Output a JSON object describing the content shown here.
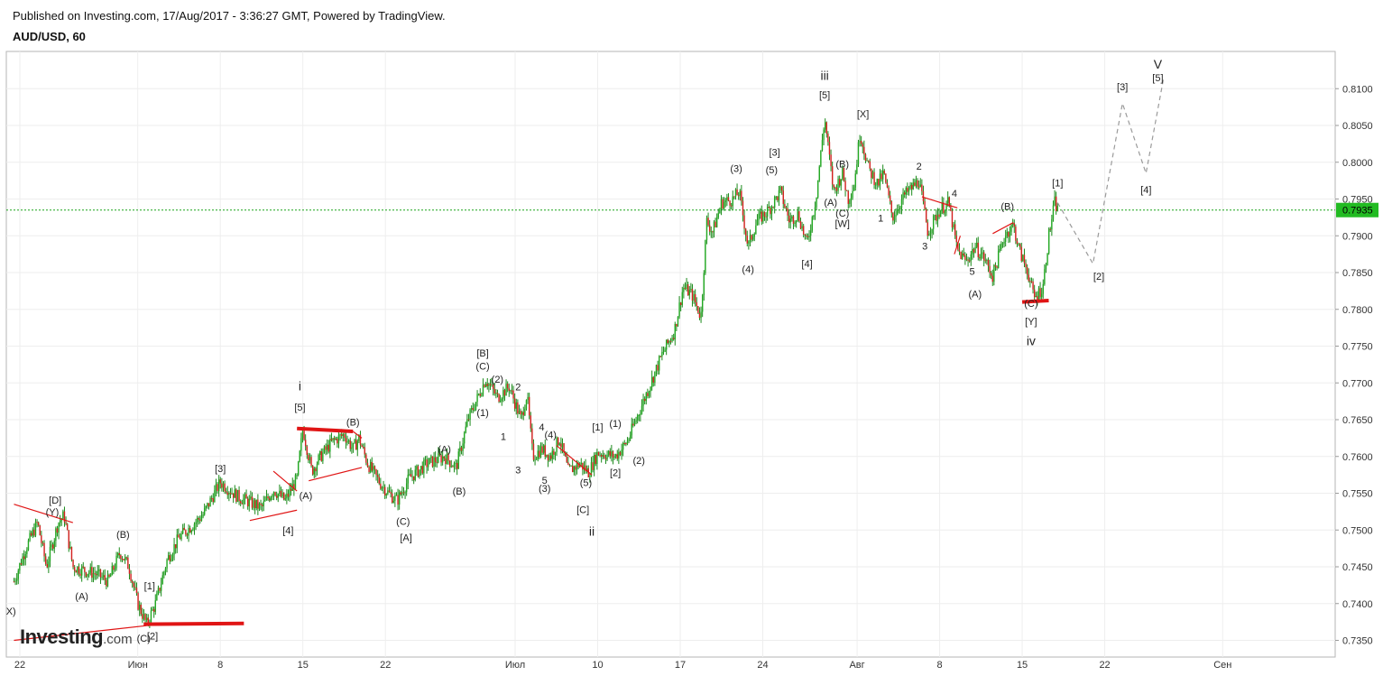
{
  "header": {
    "published": "Published on Investing.com, 17/Aug/2017 - 3:36:27 GMT, Powered by TradingView.",
    "symbol": "AUD/USD, 60"
  },
  "logo": {
    "brand": "Investing",
    "suffix": ".com"
  },
  "chart_data": {
    "type": "candlestick",
    "symbol": "AUD/USD",
    "interval": "60",
    "grid": true,
    "current_price": {
      "value": 0.7935,
      "label": "0.7935"
    },
    "colors": {
      "up": "#22a822",
      "down": "#d62020",
      "line": "#1a8a1a",
      "price_line": "#1aa31a",
      "price_tag_bg": "#22bb22",
      "grid": "#eeeeee",
      "trend": "#e01515",
      "projection": "#9a9a9a"
    },
    "y_axis": {
      "range": [
        0.7335,
        0.8145
      ],
      "ticks": [
        "0.7350",
        "0.7400",
        "0.7450",
        "0.7500",
        "0.7550",
        "0.7600",
        "0.7650",
        "0.7700",
        "0.7750",
        "0.7800",
        "0.7850",
        "0.7900",
        "0.7950",
        "0.8000",
        "0.8050",
        "0.8100"
      ]
    },
    "x_axis": {
      "date_range": [
        "2017-05-22",
        "2017-09-05"
      ],
      "ticks": [
        {
          "label": "22",
          "date": "2017-05-22"
        },
        {
          "label": "Июн",
          "date": "2017-06-01"
        },
        {
          "label": "8",
          "date": "2017-06-08"
        },
        {
          "label": "15",
          "date": "2017-06-15"
        },
        {
          "label": "22",
          "date": "2017-06-22"
        },
        {
          "label": "Июл",
          "date": "2017-07-03"
        },
        {
          "label": "10",
          "date": "2017-07-10"
        },
        {
          "label": "17",
          "date": "2017-07-17"
        },
        {
          "label": "24",
          "date": "2017-07-24"
        },
        {
          "label": "Авг",
          "date": "2017-08-01"
        },
        {
          "label": "8",
          "date": "2017-08-08"
        },
        {
          "label": "15",
          "date": "2017-08-15"
        },
        {
          "label": "22",
          "date": "2017-08-22"
        },
        {
          "label": "Сен",
          "date": "2017-09-01"
        }
      ]
    },
    "price_path": [
      [
        "2017-05-21 12:00",
        0.743
      ],
      [
        "2017-05-22 12:00",
        0.7475
      ],
      [
        "2017-05-23 12:00",
        0.751
      ],
      [
        "2017-05-24 06:00",
        0.745
      ],
      [
        "2017-05-25 06:00",
        0.751
      ],
      [
        "2017-05-25 18:00",
        0.752
      ],
      [
        "2017-05-26 12:00",
        0.745
      ],
      [
        "2017-05-28 12:00",
        0.744
      ],
      [
        "2017-05-29 12:00",
        0.743
      ],
      [
        "2017-05-30 12:00",
        0.747
      ],
      [
        "2017-05-31 06:00",
        0.745
      ],
      [
        "2017-06-01 00:00",
        0.74
      ],
      [
        "2017-06-01 18:00",
        0.7372
      ],
      [
        "2017-06-02 12:00",
        0.74
      ],
      [
        "2017-06-03 12:00",
        0.746
      ],
      [
        "2017-06-04 12:00",
        0.749
      ],
      [
        "2017-06-06 12:00",
        0.752
      ],
      [
        "2017-06-08 00:00",
        0.7565
      ],
      [
        "2017-06-09 12:00",
        0.7545
      ],
      [
        "2017-06-11 12:00",
        0.753
      ],
      [
        "2017-06-12 12:00",
        0.7555
      ],
      [
        "2017-06-13 12:00",
        0.754
      ],
      [
        "2017-06-14 12:00",
        0.757
      ],
      [
        "2017-06-15 00:00",
        0.7638
      ],
      [
        "2017-06-15 18:00",
        0.758
      ],
      [
        "2017-06-16 12:00",
        0.76
      ],
      [
        "2017-06-17 12:00",
        0.762
      ],
      [
        "2017-06-18 12:00",
        0.763
      ],
      [
        "2017-06-19 06:00",
        0.761
      ],
      [
        "2017-06-19 18:00",
        0.7625
      ],
      [
        "2017-06-20 12:00",
        0.759
      ],
      [
        "2017-06-21 12:00",
        0.7565
      ],
      [
        "2017-06-22 06:00",
        0.755
      ],
      [
        "2017-06-23 00:00",
        0.754
      ],
      [
        "2017-06-24 00:00",
        0.757
      ],
      [
        "2017-06-25 12:00",
        0.759
      ],
      [
        "2017-06-27 00:00",
        0.76
      ],
      [
        "2017-06-28 00:00",
        0.7585
      ],
      [
        "2017-06-29 00:00",
        0.765
      ],
      [
        "2017-06-30 12:00",
        0.7705
      ],
      [
        "2017-07-01 12:00",
        0.768
      ],
      [
        "2017-07-02 12:00",
        0.7695
      ],
      [
        "2017-07-03 12:00",
        0.765
      ],
      [
        "2017-07-04 00:00",
        0.7685
      ],
      [
        "2017-07-04 12:00",
        0.76
      ],
      [
        "2017-07-05 06:00",
        0.761
      ],
      [
        "2017-07-06 00:00",
        0.76
      ],
      [
        "2017-07-06 18:00",
        0.7625
      ],
      [
        "2017-07-07 12:00",
        0.758
      ],
      [
        "2017-07-08 12:00",
        0.759
      ],
      [
        "2017-07-09 06:00",
        0.7578
      ],
      [
        "2017-07-10 00:00",
        0.7605
      ],
      [
        "2017-07-11 12:00",
        0.76
      ],
      [
        "2017-07-12 12:00",
        0.762
      ],
      [
        "2017-07-13 12:00",
        0.766
      ],
      [
        "2017-07-14 12:00",
        0.77
      ],
      [
        "2017-07-15 12:00",
        0.774
      ],
      [
        "2017-07-16 12:00",
        0.777
      ],
      [
        "2017-07-17 06:00",
        0.783
      ],
      [
        "2017-07-18 00:00",
        0.782
      ],
      [
        "2017-07-18 18:00",
        0.779
      ],
      [
        "2017-07-19 06:00",
        0.792
      ],
      [
        "2017-07-19 18:00",
        0.7905
      ],
      [
        "2017-07-20 12:00",
        0.7945
      ],
      [
        "2017-07-21 12:00",
        0.795
      ],
      [
        "2017-07-22 00:00",
        0.796
      ],
      [
        "2017-07-22 18:00",
        0.7885
      ],
      [
        "2017-07-23 12:00",
        0.792
      ],
      [
        "2017-07-24 12:00",
        0.7935
      ],
      [
        "2017-07-25 12:00",
        0.796
      ],
      [
        "2017-07-26 06:00",
        0.792
      ],
      [
        "2017-07-27 00:00",
        0.793
      ],
      [
        "2017-07-27 18:00",
        0.7888
      ],
      [
        "2017-07-28 12:00",
        0.795
      ],
      [
        "2017-07-29 06:00",
        0.806
      ],
      [
        "2017-07-30 00:00",
        0.796
      ],
      [
        "2017-07-30 18:00",
        0.7985
      ],
      [
        "2017-07-31 06:00",
        0.795
      ],
      [
        "2017-07-31 18:00",
        0.797
      ],
      [
        "2017-08-01 06:00",
        0.804
      ],
      [
        "2017-08-02 00:00",
        0.799
      ],
      [
        "2017-08-02 18:00",
        0.797
      ],
      [
        "2017-08-03 06:00",
        0.7985
      ],
      [
        "2017-08-04 00:00",
        0.7925
      ],
      [
        "2017-08-05 00:00",
        0.7955
      ],
      [
        "2017-08-06 06:00",
        0.7975
      ],
      [
        "2017-08-07 00:00",
        0.7905
      ],
      [
        "2017-08-08 00:00",
        0.7935
      ],
      [
        "2017-08-08 18:00",
        0.7945
      ],
      [
        "2017-08-09 12:00",
        0.788
      ],
      [
        "2017-08-10 06:00",
        0.7865
      ],
      [
        "2017-08-11 00:00",
        0.7885
      ],
      [
        "2017-08-11 18:00",
        0.787
      ],
      [
        "2017-08-12 12:00",
        0.7845
      ],
      [
        "2017-08-13 12:00",
        0.79
      ],
      [
        "2017-08-14 06:00",
        0.7915
      ],
      [
        "2017-08-14 18:00",
        0.788
      ],
      [
        "2017-08-15 12:00",
        0.785
      ],
      [
        "2017-08-16 00:00",
        0.7815
      ],
      [
        "2017-08-16 18:00",
        0.783
      ],
      [
        "2017-08-17 06:00",
        0.79
      ],
      [
        "2017-08-17 18:00",
        0.7945
      ],
      [
        "2017-08-18 00:00",
        0.7935
      ]
    ],
    "projection_path": [
      [
        "2017-08-18 00:00",
        0.7945
      ],
      [
        "2017-08-21 00:00",
        0.7862
      ],
      [
        "2017-08-23 12:00",
        0.808
      ],
      [
        "2017-08-25 12:00",
        0.7985
      ],
      [
        "2017-08-27 00:00",
        0.8115
      ]
    ],
    "trendlines": [
      {
        "points": [
          [
            "2017-05-21 12:00",
            0.7535
          ],
          [
            "2017-05-26 12:00",
            0.751
          ]
        ],
        "bold": false
      },
      {
        "points": [
          [
            "2017-05-21 12:00",
            0.735
          ],
          [
            "2017-06-01 18:00",
            0.737
          ]
        ],
        "bold": false
      },
      {
        "points": [
          [
            "2017-06-01 12:00",
            0.7372
          ],
          [
            "2017-06-10 00:00",
            0.7373
          ]
        ],
        "bold": true
      },
      {
        "points": [
          [
            "2017-06-10 12:00",
            0.7513
          ],
          [
            "2017-06-14 12:00",
            0.7527
          ]
        ],
        "bold": false
      },
      {
        "points": [
          [
            "2017-06-12 12:00",
            0.758
          ],
          [
            "2017-06-14 12:00",
            0.7553
          ]
        ],
        "bold": false
      },
      {
        "points": [
          [
            "2017-06-14 12:00",
            0.7638
          ],
          [
            "2017-06-19 06:00",
            0.7634
          ]
        ],
        "bold": true
      },
      {
        "points": [
          [
            "2017-06-15 12:00",
            0.7567
          ],
          [
            "2017-06-20 00:00",
            0.7585
          ]
        ],
        "bold": false
      },
      {
        "points": [
          [
            "2017-06-19 06:00",
            0.7634
          ],
          [
            "2017-06-20 00:00",
            0.7625
          ]
        ],
        "bold": false
      },
      {
        "points": [
          [
            "2017-07-06 12:00",
            0.7615
          ],
          [
            "2017-07-09 12:00",
            0.7575
          ]
        ],
        "bold": false
      },
      {
        "points": [
          [
            "2017-08-06 12:00",
            0.7953
          ],
          [
            "2017-08-09 12:00",
            0.7938
          ]
        ],
        "bold": false
      },
      {
        "points": [
          [
            "2017-08-09 06:00",
            0.7875
          ],
          [
            "2017-08-09 18:00",
            0.79
          ]
        ],
        "bold": false
      },
      {
        "points": [
          [
            "2017-08-12 12:00",
            0.7903
          ],
          [
            "2017-08-14 06:00",
            0.7918
          ]
        ],
        "bold": false
      },
      {
        "points": [
          [
            "2017-08-15 00:00",
            0.781
          ],
          [
            "2017-08-17 06:00",
            0.7812
          ]
        ],
        "bold": true
      }
    ],
    "wave_labels": [
      {
        "text": "[D]",
        "date": "2017-05-25 00:00",
        "price": 0.7541
      },
      {
        "text": "(Y)",
        "date": "2017-05-24 18:00",
        "price": 0.7525
      },
      {
        "text": "(B)",
        "date": "2017-05-30 18:00",
        "price": 0.7494
      },
      {
        "text": "(A)",
        "date": "2017-05-27 06:00",
        "price": 0.741
      },
      {
        "text": "[1]",
        "date": "2017-06-02 00:00",
        "price": 0.7424
      },
      {
        "text": "(C)",
        "date": "2017-06-01 12:00",
        "price": 0.7353
      },
      {
        "text": "[2]",
        "date": "2017-06-02 06:00",
        "price": 0.7356
      },
      {
        "text": "X)",
        "date": "2017-05-21 06:00",
        "price": 0.739
      },
      {
        "text": "[3]",
        "date": "2017-06-08 00:00",
        "price": 0.7584
      },
      {
        "text": "[4]",
        "date": "2017-06-13 18:00",
        "price": 0.75
      },
      {
        "text": "i",
        "date": "2017-06-14 18:00",
        "price": 0.7695,
        "big": true
      },
      {
        "text": "[5]",
        "date": "2017-06-14 18:00",
        "price": 0.7667
      },
      {
        "text": "(A)",
        "date": "2017-06-15 06:00",
        "price": 0.7547
      },
      {
        "text": "(B)",
        "date": "2017-06-19 06:00",
        "price": 0.7647
      },
      {
        "text": "(C)",
        "date": "2017-06-23 12:00",
        "price": 0.7512
      },
      {
        "text": "[A]",
        "date": "2017-06-23 18:00",
        "price": 0.749
      },
      {
        "text": "(A)",
        "date": "2017-06-27 00:00",
        "price": 0.761
      },
      {
        "text": "(B)",
        "date": "2017-06-28 06:00",
        "price": 0.7553
      },
      {
        "text": "[B]",
        "date": "2017-06-30 06:00",
        "price": 0.7741
      },
      {
        "text": "(C)",
        "date": "2017-06-30 06:00",
        "price": 0.7723
      },
      {
        "text": "(1)",
        "date": "2017-06-30 06:00",
        "price": 0.766
      },
      {
        "text": "(2)",
        "date": "2017-07-01 12:00",
        "price": 0.7705
      },
      {
        "text": "2",
        "date": "2017-07-03 06:00",
        "price": 0.7695
      },
      {
        "text": "1",
        "date": "2017-07-02 00:00",
        "price": 0.7627
      },
      {
        "text": "3",
        "date": "2017-07-03 06:00",
        "price": 0.7582
      },
      {
        "text": "4",
        "date": "2017-07-05 06:00",
        "price": 0.764
      },
      {
        "text": "(4)",
        "date": "2017-07-06 00:00",
        "price": 0.763
      },
      {
        "text": "5",
        "date": "2017-07-05 12:00",
        "price": 0.7568
      },
      {
        "text": "(3)",
        "date": "2017-07-05 12:00",
        "price": 0.7557
      },
      {
        "text": "(5)",
        "date": "2017-07-09 00:00",
        "price": 0.7565
      },
      {
        "text": "[C]",
        "date": "2017-07-08 18:00",
        "price": 0.7528
      },
      {
        "text": "ii",
        "date": "2017-07-09 12:00",
        "price": 0.7497,
        "big": true
      },
      {
        "text": "[1]",
        "date": "2017-07-10 00:00",
        "price": 0.764
      },
      {
        "text": "(1)",
        "date": "2017-07-11 12:00",
        "price": 0.7645
      },
      {
        "text": "[2]",
        "date": "2017-07-11 12:00",
        "price": 0.7578
      },
      {
        "text": "(2)",
        "date": "2017-07-13 12:00",
        "price": 0.7595
      },
      {
        "text": "(3)",
        "date": "2017-07-21 18:00",
        "price": 0.7992
      },
      {
        "text": "(4)",
        "date": "2017-07-22 18:00",
        "price": 0.7855
      },
      {
        "text": "[3]",
        "date": "2017-07-25 00:00",
        "price": 0.8014
      },
      {
        "text": "(5)",
        "date": "2017-07-24 18:00",
        "price": 0.799
      },
      {
        "text": "[4]",
        "date": "2017-07-27 18:00",
        "price": 0.7862
      },
      {
        "text": "iii",
        "date": "2017-07-29 06:00",
        "price": 0.8117,
        "big": true
      },
      {
        "text": "[5]",
        "date": "2017-07-29 06:00",
        "price": 0.8092
      },
      {
        "text": "(B)",
        "date": "2017-07-30 18:00",
        "price": 0.7998
      },
      {
        "text": "(A)",
        "date": "2017-07-29 18:00",
        "price": 0.7946
      },
      {
        "text": "(C)",
        "date": "2017-07-30 18:00",
        "price": 0.7931
      },
      {
        "text": "[W]",
        "date": "2017-07-30 18:00",
        "price": 0.7917
      },
      {
        "text": "[X]",
        "date": "2017-08-01 12:00",
        "price": 0.8066
      },
      {
        "text": "1",
        "date": "2017-08-03 00:00",
        "price": 0.7924
      },
      {
        "text": "2",
        "date": "2017-08-06 06:00",
        "price": 0.7995
      },
      {
        "text": "3",
        "date": "2017-08-06 18:00",
        "price": 0.7886
      },
      {
        "text": "4",
        "date": "2017-08-09 06:00",
        "price": 0.7958
      },
      {
        "text": "5",
        "date": "2017-08-10 18:00",
        "price": 0.7852
      },
      {
        "text": "(A)",
        "date": "2017-08-11 00:00",
        "price": 0.7821
      },
      {
        "text": "(B)",
        "date": "2017-08-13 18:00",
        "price": 0.794
      },
      {
        "text": "(C)",
        "date": "2017-08-15 18:00",
        "price": 0.7808
      },
      {
        "text": "[Y]",
        "date": "2017-08-15 18:00",
        "price": 0.7784
      },
      {
        "text": "iv",
        "date": "2017-08-15 18:00",
        "price": 0.7756,
        "big": true
      },
      {
        "text": "[1]",
        "date": "2017-08-18 00:00",
        "price": 0.7972
      },
      {
        "text": "[2]",
        "date": "2017-08-21 12:00",
        "price": 0.7845
      },
      {
        "text": "[3]",
        "date": "2017-08-23 12:00",
        "price": 0.8103
      },
      {
        "text": "[4]",
        "date": "2017-08-25 12:00",
        "price": 0.7963
      },
      {
        "text": "V",
        "date": "2017-08-26 12:00",
        "price": 0.8132,
        "big": true
      },
      {
        "text": "[5]",
        "date": "2017-08-26 12:00",
        "price": 0.8115
      }
    ]
  }
}
